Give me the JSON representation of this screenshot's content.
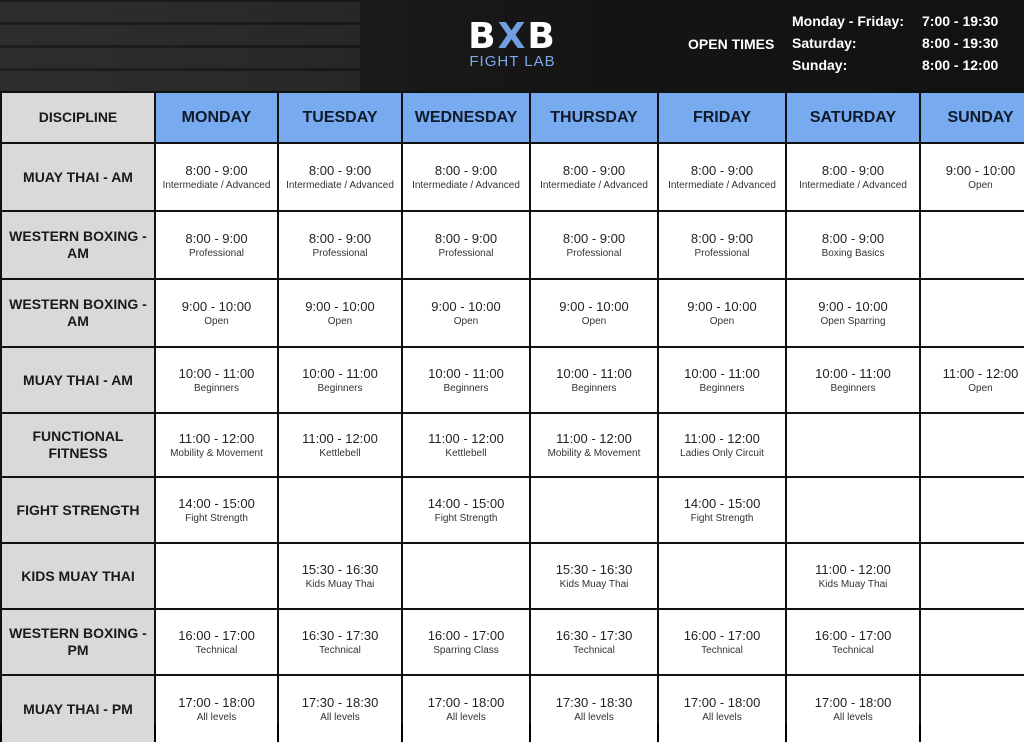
{
  "header": {
    "logo_main": "BXB",
    "logo_sub": "FIGHT LAB",
    "open_label": "OPEN TIMES",
    "open_times": [
      {
        "day": "Monday - Friday:",
        "time": "7:00 - 19:30"
      },
      {
        "day": "Saturday:",
        "time": "8:00 - 19:30"
      },
      {
        "day": "Sunday:",
        "time": "8:00 - 12:00"
      }
    ]
  },
  "colors": {
    "day_header": "#78aaf0",
    "discipline_bg": "#d9d9d9",
    "logo_accent": "#7ea9e8"
  },
  "table": {
    "corner": "DISCIPLINE",
    "days": [
      "MONDAY",
      "TUESDAY",
      "WEDNESDAY",
      "THURSDAY",
      "FRIDAY",
      "SATURDAY",
      "SUNDAY"
    ],
    "rows": [
      {
        "discipline": "MUAY THAI - AM",
        "cells": [
          {
            "time": "8:00 - 9:00",
            "label": "Intermediate / Advanced"
          },
          {
            "time": "8:00 - 9:00",
            "label": "Intermediate / Advanced"
          },
          {
            "time": "8:00 - 9:00",
            "label": "Intermediate / Advanced"
          },
          {
            "time": "8:00 - 9:00",
            "label": "Intermediate / Advanced"
          },
          {
            "time": "8:00 - 9:00",
            "label": "Intermediate / Advanced"
          },
          {
            "time": "8:00 - 9:00",
            "label": "Intermediate / Advanced"
          },
          {
            "time": "9:00 - 10:00",
            "label": "Open"
          }
        ]
      },
      {
        "discipline": "WESTERN BOXING - AM",
        "cells": [
          {
            "time": "8:00 - 9:00",
            "label": "Professional"
          },
          {
            "time": "8:00 - 9:00",
            "label": "Professional"
          },
          {
            "time": "8:00 - 9:00",
            "label": "Professional"
          },
          {
            "time": "8:00 - 9:00",
            "label": "Professional"
          },
          {
            "time": "8:00 - 9:00",
            "label": "Professional"
          },
          {
            "time": "8:00 - 9:00",
            "label": "Boxing Basics"
          },
          null
        ]
      },
      {
        "discipline": "WESTERN BOXING - AM",
        "cells": [
          {
            "time": "9:00 - 10:00",
            "label": "Open"
          },
          {
            "time": "9:00 - 10:00",
            "label": "Open"
          },
          {
            "time": "9:00 - 10:00",
            "label": "Open"
          },
          {
            "time": "9:00 - 10:00",
            "label": "Open"
          },
          {
            "time": "9:00 - 10:00",
            "label": "Open"
          },
          {
            "time": "9:00 - 10:00",
            "label": "Open Sparring"
          },
          null
        ]
      },
      {
        "discipline": "MUAY THAI - AM",
        "cells": [
          {
            "time": "10:00 - 11:00",
            "label": "Beginners"
          },
          {
            "time": "10:00 - 11:00",
            "label": "Beginners"
          },
          {
            "time": "10:00 - 11:00",
            "label": "Beginners"
          },
          {
            "time": "10:00 - 11:00",
            "label": "Beginners"
          },
          {
            "time": "10:00 - 11:00",
            "label": "Beginners"
          },
          {
            "time": "10:00 - 11:00",
            "label": "Beginners"
          },
          {
            "time": "11:00 - 12:00",
            "label": "Open"
          }
        ]
      },
      {
        "discipline": "FUNCTIONAL FITNESS",
        "cells": [
          {
            "time": "11:00 - 12:00",
            "label": "Mobility & Movement"
          },
          {
            "time": "11:00 - 12:00",
            "label": "Kettlebell"
          },
          {
            "time": "11:00 - 12:00",
            "label": "Kettlebell"
          },
          {
            "time": "11:00 - 12:00",
            "label": "Mobility & Movement"
          },
          {
            "time": "11:00 - 12:00",
            "label": "Ladies Only Circuit"
          },
          null,
          null
        ]
      },
      {
        "discipline": "FIGHT STRENGTH",
        "cells": [
          {
            "time": "14:00 - 15:00",
            "label": "Fight Strength"
          },
          null,
          {
            "time": "14:00 - 15:00",
            "label": "Fight Strength"
          },
          null,
          {
            "time": "14:00 - 15:00",
            "label": "Fight Strength"
          },
          null,
          null
        ]
      },
      {
        "discipline": "KIDS MUAY THAI",
        "cells": [
          null,
          {
            "time": "15:30 - 16:30",
            "label": "Kids Muay Thai"
          },
          null,
          {
            "time": "15:30 - 16:30",
            "label": "Kids Muay Thai"
          },
          null,
          {
            "time": "11:00 - 12:00",
            "label": "Kids Muay Thai"
          },
          null
        ]
      },
      {
        "discipline": "WESTERN BOXING - PM",
        "cells": [
          {
            "time": "16:00 - 17:00",
            "label": "Technical"
          },
          {
            "time": "16:30 - 17:30",
            "label": "Technical"
          },
          {
            "time": "16:00 - 17:00",
            "label": "Sparring Class"
          },
          {
            "time": "16:30 - 17:30",
            "label": "Technical"
          },
          {
            "time": "16:00 - 17:00",
            "label": "Technical"
          },
          {
            "time": "16:00 - 17:00",
            "label": "Technical"
          },
          null
        ]
      },
      {
        "discipline": "MUAY THAI - PM",
        "cells": [
          {
            "time": "17:00 - 18:00",
            "label": "All levels"
          },
          {
            "time": "17:30 - 18:30",
            "label": "All levels"
          },
          {
            "time": "17:00 - 18:00",
            "label": "All levels"
          },
          {
            "time": "17:30 - 18:30",
            "label": "All levels"
          },
          {
            "time": "17:00 - 18:00",
            "label": "All levels"
          },
          {
            "time": "17:00 - 18:00",
            "label": "All levels"
          },
          null
        ]
      }
    ]
  }
}
